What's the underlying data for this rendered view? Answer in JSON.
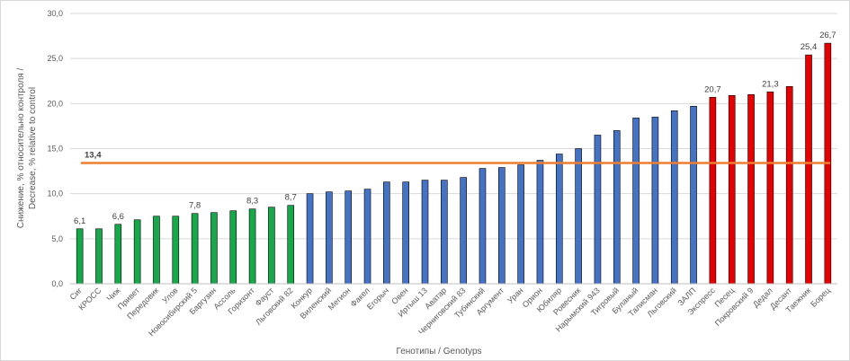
{
  "chart_data": {
    "type": "bar",
    "ylabel": [
      "Снижение, % относительно контроля /",
      "Decrease, % relative to control"
    ],
    "xlabel": "Генотипы / Genotyps",
    "categories": [
      "Сиг",
      "КРОСС",
      "Чиж",
      "Привет",
      "Передовик",
      "Улов",
      "Новосибирский 5",
      "Баргузин",
      "Ассоль",
      "Горизонт",
      "Фауст",
      "Льговский 82",
      "Конкур",
      "Виленский",
      "Мегион",
      "Факел",
      "Егорыч",
      "Овен",
      "Иртыш 13",
      "Аватар",
      "Черниговский 83",
      "Тубинский",
      "Аргумент",
      "Уран",
      "Орион",
      "Юбиляр",
      "Ровесник",
      "Нарымский 943",
      "Тигровый",
      "Буланый",
      "Талисман",
      "Льговский",
      "ЗАЛП",
      "Экспресс",
      "Песец",
      "Покровский 9",
      "Дедал",
      "Десант",
      "Таежник",
      "Борец"
    ],
    "values": [
      6.1,
      6.1,
      6.6,
      7.1,
      7.5,
      7.5,
      7.8,
      7.9,
      8.1,
      8.3,
      8.5,
      8.7,
      10.0,
      10.2,
      10.3,
      10.5,
      11.3,
      11.3,
      11.5,
      11.5,
      11.8,
      12.8,
      12.9,
      13.2,
      13.7,
      14.4,
      15.0,
      16.5,
      17.0,
      18.4,
      18.5,
      19.2,
      19.7,
      20.7,
      20.9,
      21.0,
      21.3,
      21.9,
      25.4,
      26.7
    ],
    "value_labels": [
      "6,1",
      null,
      "6,6",
      null,
      null,
      null,
      "7,8",
      null,
      null,
      "8,3",
      null,
      "8,7",
      null,
      null,
      null,
      null,
      null,
      null,
      null,
      null,
      null,
      null,
      null,
      null,
      null,
      null,
      null,
      null,
      null,
      null,
      null,
      null,
      null,
      "20,7",
      null,
      null,
      "21,3",
      null,
      "25,4",
      "26,7"
    ],
    "colors": [
      "#17a84a",
      "#17a84a",
      "#17a84a",
      "#17a84a",
      "#17a84a",
      "#17a84a",
      "#17a84a",
      "#17a84a",
      "#17a84a",
      "#17a84a",
      "#17a84a",
      "#17a84a",
      "#4472c4",
      "#4472c4",
      "#4472c4",
      "#4472c4",
      "#4472c4",
      "#4472c4",
      "#4472c4",
      "#4472c4",
      "#4472c4",
      "#4472c4",
      "#4472c4",
      "#4472c4",
      "#4472c4",
      "#4472c4",
      "#4472c4",
      "#4472c4",
      "#4472c4",
      "#4472c4",
      "#4472c4",
      "#4472c4",
      "#4472c4",
      "#e80000",
      "#e80000",
      "#e80000",
      "#e80000",
      "#e80000",
      "#e80000",
      "#e80000"
    ],
    "reference_line": {
      "value": 13.4,
      "label": "13,4",
      "color": "#ed7d31"
    },
    "ylim": [
      0,
      30
    ],
    "yticks": [
      {
        "value": 0,
        "label": "0,0"
      },
      {
        "value": 5,
        "label": "5,0"
      },
      {
        "value": 10,
        "label": "10,0"
      },
      {
        "value": 15,
        "label": "15,0"
      },
      {
        "value": 20,
        "label": "20,0"
      },
      {
        "value": 25,
        "label": "25,0"
      },
      {
        "value": 30,
        "label": "30,0"
      }
    ],
    "grid": true
  }
}
